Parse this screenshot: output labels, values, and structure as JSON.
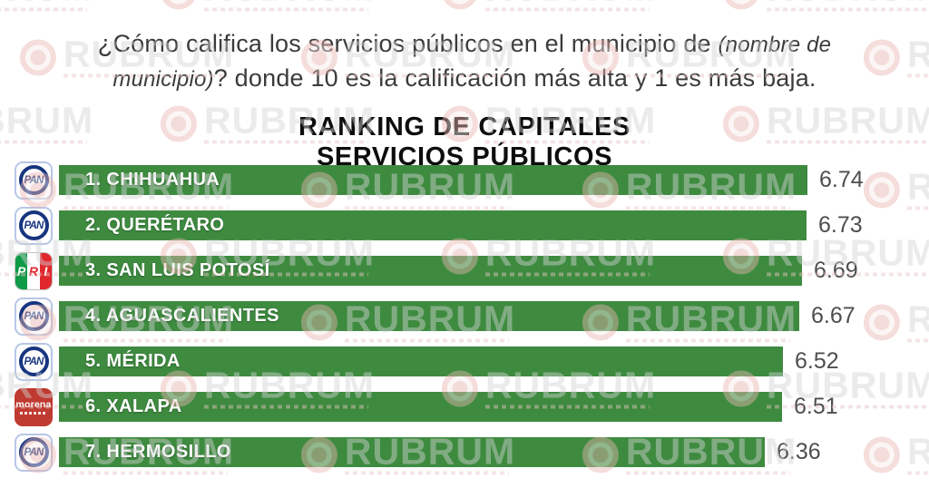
{
  "header": {
    "question_part1": "¿Cómo califica los servicios públicos en el municipio de ",
    "question_italic": "(nombre de municipio)",
    "question_part2": "? donde 10 es la calificación más alta y 1 es más baja.",
    "title_line1": "RANKING DE CAPITALES",
    "title_line2": "SERVICIOS PÚBLICOS"
  },
  "watermark": {
    "text": "RUBRUM"
  },
  "parties": {
    "pan": {
      "label": "PAN",
      "color": "#16357f"
    },
    "pri": {
      "letters": [
        "P",
        "R",
        "I"
      ],
      "colors": [
        "#0e9a47",
        "#ffffff",
        "#e0282e"
      ]
    },
    "morena": {
      "label": "morena",
      "color": "#bf3a31"
    }
  },
  "chart_data": {
    "type": "bar",
    "orientation": "horizontal",
    "title": "RANKING DE CAPITALES SERVICIOS PÚBLICOS",
    "xlabel": "",
    "ylabel": "",
    "xlim": [
      0,
      6.74
    ],
    "bar_color": "#3e8b40",
    "grid": false,
    "legend": false,
    "categories": [
      "1. CHIHUAHUA",
      "2. QUERÉTARO",
      "3. SAN LUIS POTOSÍ",
      "4. AGUASCALIENTES",
      "5. MÉRIDA",
      "6. XALAPA",
      "7. HERMOSILLO"
    ],
    "values": [
      6.74,
      6.73,
      6.69,
      6.67,
      6.52,
      6.51,
      6.36
    ],
    "rows": [
      {
        "rank": 1,
        "city": "CHIHUAHUA",
        "label": "1. CHIHUAHUA",
        "party": "PAN",
        "value": 6.74,
        "value_label": "6.74"
      },
      {
        "rank": 2,
        "city": "QUERÉTARO",
        "label": "2. QUERÉTARO",
        "party": "PAN",
        "value": 6.73,
        "value_label": "6.73"
      },
      {
        "rank": 3,
        "city": "SAN LUIS POTOSÍ",
        "label": "3. SAN LUIS POTOSÍ",
        "party": "PRI",
        "value": 6.69,
        "value_label": "6.69"
      },
      {
        "rank": 4,
        "city": "AGUASCALIENTES",
        "label": "4. AGUASCALIENTES",
        "party": "PAN",
        "value": 6.67,
        "value_label": "6.67"
      },
      {
        "rank": 5,
        "city": "MÉRIDA",
        "label": "5. MÉRIDA",
        "party": "PAN",
        "value": 6.52,
        "value_label": "6.52"
      },
      {
        "rank": 6,
        "city": "XALAPA",
        "label": "6. XALAPA",
        "party": "morena",
        "value": 6.51,
        "value_label": "6.51"
      },
      {
        "rank": 7,
        "city": "HERMOSILLO",
        "label": "7. HERMOSILLO",
        "party": "PAN",
        "value": 6.36,
        "value_label": "6.36"
      }
    ]
  }
}
